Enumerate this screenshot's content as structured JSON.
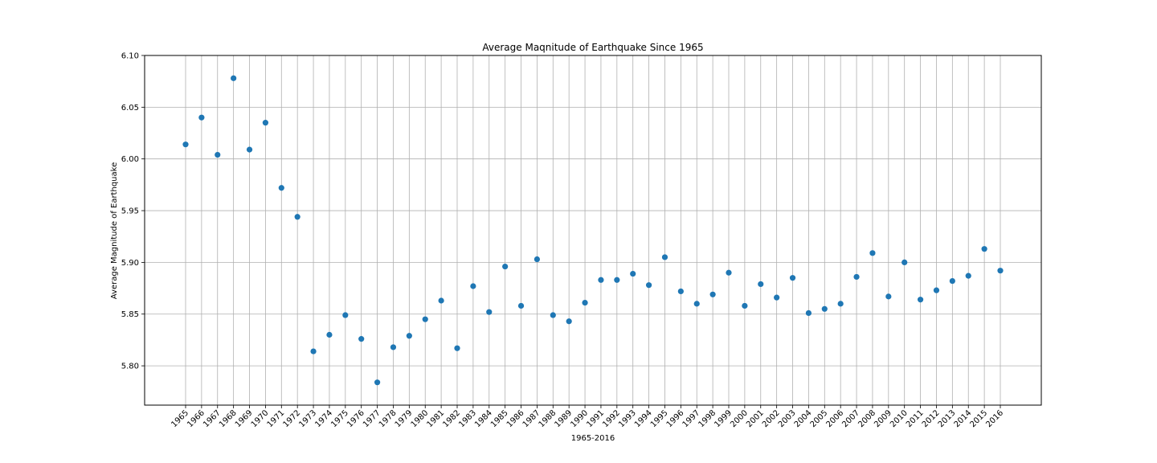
{
  "chart_data": {
    "type": "scatter",
    "title": "Average Maqnitude of Earthquake Since 1965",
    "xlabel": "1965-2016",
    "ylabel": "Average Magnitude of Earthquake",
    "x": [
      1965,
      1966,
      1967,
      1968,
      1969,
      1970,
      1971,
      1972,
      1973,
      1974,
      1975,
      1976,
      1977,
      1978,
      1979,
      1980,
      1981,
      1982,
      1983,
      1984,
      1985,
      1986,
      1987,
      1988,
      1989,
      1990,
      1991,
      1992,
      1993,
      1994,
      1995,
      1996,
      1997,
      1998,
      1999,
      2000,
      2001,
      2002,
      2003,
      2004,
      2005,
      2006,
      2007,
      2008,
      2009,
      2010,
      2011,
      2012,
      2013,
      2014,
      2015,
      2016
    ],
    "x_tick_labels": [
      "1965",
      "1966",
      "1967",
      "1968",
      "1969",
      "1970",
      "1971",
      "1972",
      "1973",
      "1974",
      "1975",
      "1976",
      "1977",
      "1978",
      "1979",
      "1980",
      "1981",
      "1982",
      "1983",
      "1984",
      "1985",
      "1986",
      "1987",
      "1988",
      "1989",
      "1990",
      "1991",
      "1992",
      "1993",
      "1994",
      "1995",
      "1996",
      "1997",
      "1998",
      "1999",
      "2000",
      "2001",
      "2002",
      "2003",
      "2004",
      "2005",
      "2006",
      "2007",
      "2008",
      "2009",
      "2010",
      "2011",
      "2012",
      "2013",
      "2014",
      "2015",
      "2016"
    ],
    "y": [
      6.014,
      6.04,
      6.004,
      6.078,
      6.009,
      6.035,
      5.972,
      5.944,
      5.814,
      5.83,
      5.849,
      5.826,
      5.784,
      5.818,
      5.829,
      5.845,
      5.863,
      5.817,
      5.877,
      5.852,
      5.896,
      5.858,
      5.903,
      5.849,
      5.843,
      5.861,
      5.883,
      5.883,
      5.889,
      5.878,
      5.905,
      5.872,
      5.86,
      5.869,
      5.89,
      5.858,
      5.879,
      5.866,
      5.885,
      5.851,
      5.855,
      5.86,
      5.886,
      5.909,
      5.867,
      5.9,
      5.864,
      5.873,
      5.882,
      5.887,
      5.913,
      5.892
    ],
    "ylim": [
      5.762,
      6.1
    ],
    "y_ticks": [
      5.8,
      5.85,
      5.9,
      5.95,
      6.0,
      6.05,
      6.1
    ],
    "y_tick_labels": [
      "5.80",
      "5.85",
      "5.90",
      "5.95",
      "6.00",
      "6.05",
      "6.10"
    ],
    "grid": true,
    "legend": "none",
    "point_color": "#1f77b4"
  }
}
